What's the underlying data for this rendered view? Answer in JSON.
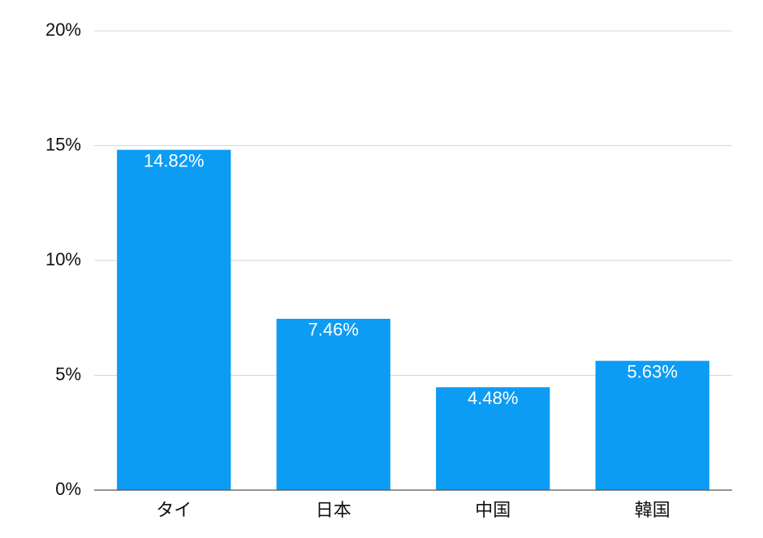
{
  "chart_data": {
    "type": "bar",
    "categories": [
      "タイ",
      "日本",
      "中国",
      "韓国"
    ],
    "values": [
      14.82,
      7.46,
      4.48,
      5.63
    ],
    "value_labels": [
      "14.82%",
      "7.46%",
      "4.48%",
      "5.63%"
    ],
    "color": "#0c9cf4",
    "ylim": [
      0,
      20
    ],
    "yticks": [
      {
        "value": 0,
        "label": "0%"
      },
      {
        "value": 5,
        "label": "5%"
      },
      {
        "value": 10,
        "label": "10%"
      },
      {
        "value": 15,
        "label": "15%"
      },
      {
        "value": 20,
        "label": "20%"
      }
    ],
    "grid": true
  }
}
